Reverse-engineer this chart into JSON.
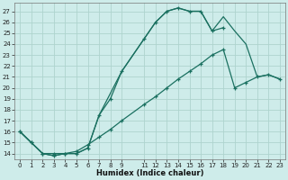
{
  "xlabel": "Humidex (Indice chaleur)",
  "bg_color": "#ceecea",
  "grid_color": "#aed4ce",
  "line_color": "#1a7060",
  "xlim": [
    -0.5,
    23.5
  ],
  "ylim": [
    13.5,
    27.8
  ],
  "xtick_vals": [
    0,
    1,
    2,
    3,
    4,
    5,
    6,
    7,
    8,
    9,
    11,
    12,
    13,
    14,
    15,
    16,
    17,
    18,
    19,
    20,
    21,
    22,
    23
  ],
  "ytick_vals": [
    14,
    15,
    16,
    17,
    18,
    19,
    20,
    21,
    22,
    23,
    24,
    25,
    26,
    27
  ],
  "line1_x": [
    0,
    1,
    2,
    3,
    4,
    5,
    6,
    7,
    8,
    9,
    11,
    12,
    13,
    14,
    15,
    16,
    17,
    18
  ],
  "line1_y": [
    16,
    15,
    14,
    13.8,
    14,
    14,
    14.5,
    17.5,
    19,
    21.5,
    24.5,
    26,
    27,
    27.3,
    27,
    27,
    25.2,
    25.5
  ],
  "line2_x": [
    0,
    1,
    2,
    3,
    4,
    5,
    6,
    7,
    9,
    11,
    12,
    13,
    14,
    15,
    16,
    17,
    18,
    19,
    20,
    21,
    22,
    23
  ],
  "line2_y": [
    16,
    15,
    14,
    13.8,
    14,
    14,
    14.5,
    17.5,
    21.5,
    24.5,
    26,
    27,
    27.3,
    27,
    27,
    25.2,
    26.5,
    25.2,
    24,
    21,
    21.2,
    20.8
  ],
  "line3_x": [
    0,
    1,
    2,
    3,
    4,
    5,
    6,
    7,
    8,
    9,
    11,
    12,
    13,
    14,
    15,
    16,
    17,
    18,
    19,
    20,
    21,
    22,
    23
  ],
  "line3_y": [
    16,
    15,
    14,
    14,
    14,
    14.2,
    14.8,
    15.5,
    16.2,
    17.0,
    18.5,
    19.2,
    20.0,
    20.8,
    21.5,
    22.2,
    23.0,
    23.5,
    20.0,
    20.5,
    21.0,
    21.2,
    20.8
  ]
}
